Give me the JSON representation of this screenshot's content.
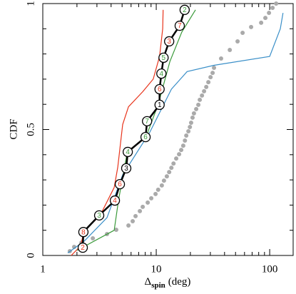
{
  "chart_data": {
    "type": "line",
    "xlabel": {
      "symbol": "Δ",
      "subscript": "spin",
      "unit": "(deg)"
    },
    "ylabel": "CDF",
    "xscale": "log",
    "xlim": [
      1,
      161
    ],
    "ylim": [
      0,
      1
    ],
    "xticks": [
      1,
      10,
      100
    ],
    "xminorticks": [
      2,
      3,
      4,
      5,
      6,
      7,
      8,
      9,
      20,
      30,
      40,
      50,
      60,
      70,
      80,
      90
    ],
    "yticks": [
      0,
      0.5,
      1
    ],
    "yminorticks": [
      0.1,
      0.2,
      0.3,
      0.4,
      0.6,
      0.7,
      0.8,
      0.9
    ],
    "series": [
      {
        "name": "gray",
        "style": "dots",
        "color": "#aaaaaa",
        "x": [
          1.73,
          1.89,
          2.19,
          2.76,
          3.68,
          4.44,
          5.69,
          6.2,
          6.57,
          7.17,
          7.6,
          8.41,
          9.04,
          9.86,
          10.4,
          11.2,
          11.7,
          12.4,
          13.0,
          13.6,
          14.2,
          15.0,
          15.9,
          16.6,
          17.3,
          17.9,
          18.4,
          19.2,
          19.8,
          20.3,
          20.9,
          21.5,
          22.5,
          23.5,
          24.2,
          25.3,
          26.4,
          27.6,
          28.8,
          30.1,
          31.4,
          32.3,
          37.3,
          44.5,
          52.1,
          57.7,
          68.6,
          84.1,
          91.6,
          98.6,
          106,
          114
        ],
        "values": [
          0.017,
          0.034,
          0.051,
          0.068,
          0.085,
          0.102,
          0.119,
          0.136,
          0.156,
          0.176,
          0.193,
          0.21,
          0.227,
          0.244,
          0.261,
          0.278,
          0.297,
          0.314,
          0.331,
          0.348,
          0.365,
          0.385,
          0.402,
          0.419,
          0.436,
          0.456,
          0.476,
          0.493,
          0.51,
          0.527,
          0.547,
          0.564,
          0.581,
          0.598,
          0.618,
          0.635,
          0.652,
          0.669,
          0.688,
          0.708,
          0.725,
          0.745,
          0.782,
          0.816,
          0.85,
          0.884,
          0.907,
          0.924,
          0.943,
          0.963,
          0.983,
          1.0
        ]
      },
      {
        "name": "red",
        "style": "line",
        "color": "#e8341c",
        "x": [
          1.78,
          2.15,
          2.32,
          3.18,
          4.26,
          4.58,
          5.06,
          5.69,
          7.6,
          9.4,
          10.7,
          11.4,
          11.5
        ],
        "values": [
          0,
          0.037,
          0.1,
          0.156,
          0.27,
          0.35,
          0.52,
          0.59,
          0.65,
          0.7,
          0.79,
          0.9,
          0.975
        ]
      },
      {
        "name": "green",
        "style": "line",
        "color": "#3a9a3a",
        "x": [
          2.0,
          4.26,
          4.65,
          5.53,
          8.2,
          10.4,
          13.2,
          16.8,
          22.2
        ],
        "values": [
          0.02,
          0.1,
          0.22,
          0.405,
          0.475,
          0.6,
          0.77,
          0.887,
          0.975
        ]
      },
      {
        "name": "blue",
        "style": "line",
        "color": "#3a8fc8",
        "x": [
          1.66,
          2.32,
          3.68,
          5.06,
          8.8,
          13.6,
          18.7,
          32.3,
          100,
          124,
          131
        ],
        "values": [
          0.01,
          0.057,
          0.15,
          0.32,
          0.49,
          0.66,
          0.73,
          0.755,
          0.79,
          0.9,
          0.963
        ]
      },
      {
        "name": "black",
        "style": "markers",
        "color": "#000000",
        "x": [
          2.25,
          2.28,
          3.14,
          4.32,
          4.78,
          5.44,
          5.61,
          8.05,
          8.3,
          10.7,
          10.7,
          11.1,
          11.6,
          13.0,
          16.1,
          17.8
        ],
        "values": [
          0.031,
          0.093,
          0.159,
          0.218,
          0.283,
          0.346,
          0.411,
          0.47,
          0.533,
          0.598,
          0.66,
          0.722,
          0.785,
          0.85,
          0.912,
          0.975
        ],
        "point_labels": [
          "2",
          "8",
          "3",
          "4",
          "6",
          "3",
          "4",
          "6",
          "7",
          "1",
          "6",
          "4",
          "5",
          "3",
          "7",
          "2"
        ],
        "point_label_colors": [
          "#e8341c",
          "#e8341c",
          "#3a9a3a",
          "#e8341c",
          "#e8341c",
          "#000000",
          "#3a9a3a",
          "#3a9a3a",
          "#3a9a3a",
          "#000000",
          "#e8341c",
          "#3a9a3a",
          "#3a9a3a",
          "#e8341c",
          "#e8341c",
          "#3a9a3a"
        ]
      }
    ]
  }
}
